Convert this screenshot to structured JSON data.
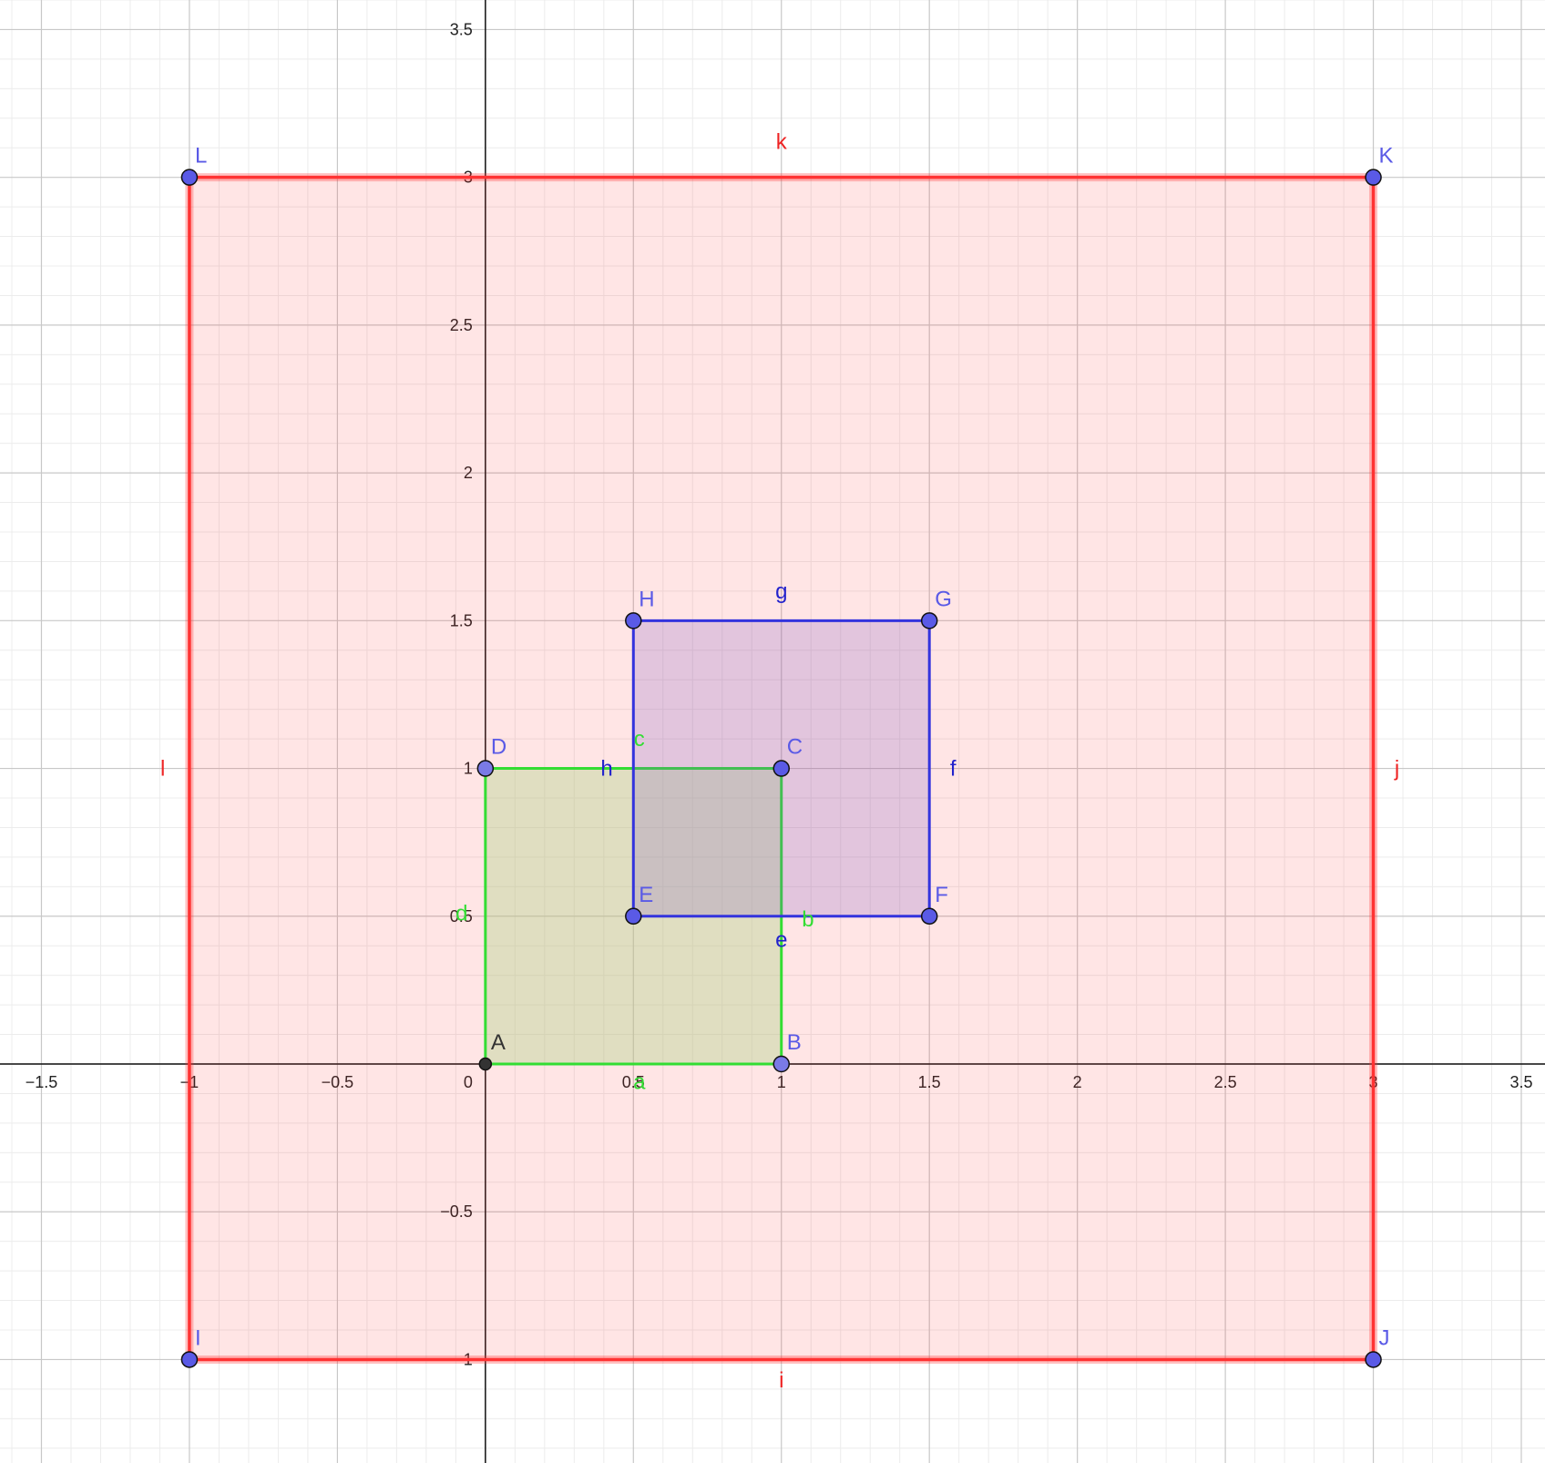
{
  "chart_data": {
    "type": "geometry",
    "xlim": [
      -1.64,
      3.58
    ],
    "ylim": [
      -1.35,
      3.6
    ],
    "grid": true,
    "axes": {
      "x_ticks": [
        {
          "value": -1.5,
          "label": "−1.5"
        },
        {
          "value": -1,
          "label": "−1"
        },
        {
          "value": -0.5,
          "label": "−0.5"
        },
        {
          "value": 0.5,
          "label": "0.5"
        },
        {
          "value": 1,
          "label": "1"
        },
        {
          "value": 1.5,
          "label": "1.5"
        },
        {
          "value": 2,
          "label": "2"
        },
        {
          "value": 2.5,
          "label": "2.5"
        },
        {
          "value": 3,
          "label": "3"
        },
        {
          "value": 3.5,
          "label": "3.5"
        }
      ],
      "y_ticks": [
        {
          "value": -1,
          "label": "−1"
        },
        {
          "value": -0.5,
          "label": "−0.5"
        },
        {
          "value": 0.5,
          "label": "0.5"
        },
        {
          "value": 1,
          "label": "1"
        },
        {
          "value": 1.5,
          "label": "1.5"
        },
        {
          "value": 2,
          "label": "2"
        },
        {
          "value": 2.5,
          "label": "2.5"
        },
        {
          "value": 3,
          "label": "3"
        },
        {
          "value": 3.5,
          "label": "3.5"
        }
      ],
      "origin_label": "0"
    },
    "polygons": [
      {
        "name": "red-square",
        "stroke": "#ff3333",
        "fill": "#ff3333",
        "fill_opacity": 0.13,
        "vertices": [
          "I",
          "J",
          "K",
          "L"
        ]
      },
      {
        "name": "green-square",
        "stroke": "#33dd33",
        "fill": "#b4d48e",
        "fill_opacity": 0.42,
        "vertices": [
          "A",
          "B",
          "C",
          "D"
        ]
      },
      {
        "name": "blue-square",
        "stroke": "#3333dd",
        "fill": "#7c57c4",
        "fill_opacity": 0.22,
        "vertices": [
          "E",
          "F",
          "G",
          "H"
        ]
      }
    ],
    "points": [
      {
        "name": "A",
        "x": 0,
        "y": 0,
        "color": "#333333"
      },
      {
        "name": "B",
        "x": 1,
        "y": 0,
        "color": "#7a7ae6"
      },
      {
        "name": "C",
        "x": 1,
        "y": 1,
        "color": "#5a5ae6"
      },
      {
        "name": "D",
        "x": 0,
        "y": 1,
        "color": "#7a7ae6"
      },
      {
        "name": "E",
        "x": 0.5,
        "y": 0.5,
        "color": "#5a5ae6"
      },
      {
        "name": "F",
        "x": 1.5,
        "y": 0.5,
        "color": "#5a5ae6"
      },
      {
        "name": "G",
        "x": 1.5,
        "y": 1.5,
        "color": "#5a5ae6"
      },
      {
        "name": "H",
        "x": 0.5,
        "y": 1.5,
        "color": "#5a5ae6"
      },
      {
        "name": "I",
        "x": -1,
        "y": -1,
        "color": "#5a5ae6"
      },
      {
        "name": "J",
        "x": 3,
        "y": -1,
        "color": "#5a5ae6"
      },
      {
        "name": "K",
        "x": 3,
        "y": 3,
        "color": "#5a5ae6"
      },
      {
        "name": "L",
        "x": -1,
        "y": 3,
        "color": "#5a5ae6"
      }
    ],
    "segment_labels": [
      {
        "name": "a",
        "x": 0.52,
        "y": -0.06,
        "color": "#33dd33"
      },
      {
        "name": "b",
        "x": 1.09,
        "y": 0.49,
        "color": "#33dd33"
      },
      {
        "name": "c",
        "x": 0.52,
        "y": 1.1,
        "color": "#33dd33"
      },
      {
        "name": "d",
        "x": -0.08,
        "y": 0.51,
        "color": "#33dd33"
      },
      {
        "name": "e",
        "x": 1.0,
        "y": 0.42,
        "color": "#2222cc"
      },
      {
        "name": "f",
        "x": 1.58,
        "y": 1.0,
        "color": "#2222cc"
      },
      {
        "name": "g",
        "x": 1.0,
        "y": 1.6,
        "color": "#2222cc"
      },
      {
        "name": "h",
        "x": 0.41,
        "y": 1.0,
        "color": "#2222cc"
      },
      {
        "name": "i",
        "x": 1.0,
        "y": -1.07,
        "color": "#ee2222"
      },
      {
        "name": "j",
        "x": 3.08,
        "y": 1.0,
        "color": "#ee2222"
      },
      {
        "name": "k",
        "x": 1.0,
        "y": 3.12,
        "color": "#ee2222"
      },
      {
        "name": "l",
        "x": -1.09,
        "y": 1.0,
        "color": "#ee2222"
      }
    ]
  }
}
